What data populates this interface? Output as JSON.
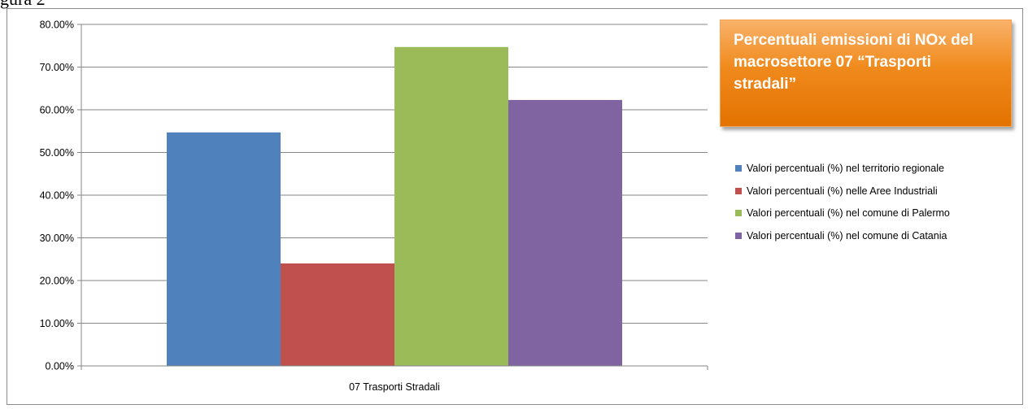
{
  "caption_fragment": "gura 2",
  "chart_data": {
    "type": "bar",
    "title": "Percentuali emissioni di NOx del macrosettore 07 “Trasporti stradali”",
    "categories": [
      "07 Trasporti Stradali"
    ],
    "series": [
      {
        "name": "Valori percentuali (%) nel territorio regionale",
        "values": [
          54.7
        ],
        "color": "#4f81bd"
      },
      {
        "name": "Valori percentuali (%) nelle Aree Industriali",
        "values": [
          24.0
        ],
        "color": "#c0504d"
      },
      {
        "name": "Valori percentuali (%) nel comune di Palermo",
        "values": [
          74.7
        ],
        "color": "#9bbb59"
      },
      {
        "name": "Valori percentuali (%) nel comune di Catania",
        "values": [
          62.3
        ],
        "color": "#8064a2"
      }
    ],
    "ylim": [
      0,
      80
    ],
    "yticks": [
      "0.00%",
      "10.00%",
      "20.00%",
      "30.00%",
      "40.00%",
      "50.00%",
      "60.00%",
      "70.00%",
      "80.00%"
    ],
    "grid": true,
    "legend_position": "right"
  }
}
